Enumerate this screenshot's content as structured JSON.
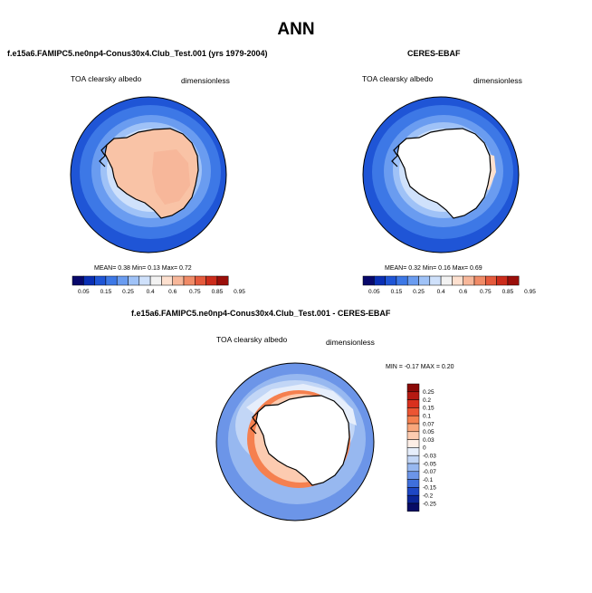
{
  "chart_data": [
    {
      "type": "heatmap",
      "panel": "top-left",
      "title": "f.e15a6.FAMIPC5.ne0np4-Conus30x4.Club_Test.001 (yrs 1979-2004)",
      "variable": "TOA clearsky albedo",
      "units": "dimensionless",
      "stats": {
        "mean": "0.38",
        "min": "0.13",
        "max": "0.72"
      },
      "colorbar": {
        "levels": [
          "0.05",
          "0.15",
          "0.25",
          "0.4",
          "0.6",
          "0.75",
          "0.85",
          "0.95"
        ],
        "colors": [
          "#08086b",
          "#0a2fb4",
          "#1f55d6",
          "#3d78e6",
          "#6a9cf0",
          "#9fc2f7",
          "#cfe1fb",
          "#f2f2f2",
          "#fde0cf",
          "#f7b79a",
          "#f08b67",
          "#e55a3c",
          "#cc2c1b",
          "#9b0f0a"
        ]
      }
    },
    {
      "type": "heatmap",
      "panel": "top-right",
      "title": "CERES-EBAF",
      "variable": "TOA clearsky albedo",
      "units": "dimensionless",
      "stats": {
        "mean": "0.32",
        "min": "0.16",
        "max": "0.69"
      },
      "colorbar": {
        "levels": [
          "0.05",
          "0.15",
          "0.25",
          "0.4",
          "0.6",
          "0.75",
          "0.85",
          "0.95"
        ],
        "colors": [
          "#08086b",
          "#0a2fb4",
          "#1f55d6",
          "#3d78e6",
          "#6a9cf0",
          "#9fc2f7",
          "#cfe1fb",
          "#f2f2f2",
          "#fde0cf",
          "#f7b79a",
          "#f08b67",
          "#e55a3c",
          "#cc2c1b",
          "#9b0f0a"
        ]
      }
    },
    {
      "type": "heatmap",
      "panel": "bottom",
      "title": "f.e15a6.FAMIPC5.ne0np4-Conus30x4.Club_Test.001 - CERES-EBAF",
      "variable": "TOA clearsky albedo",
      "units": "dimensionless",
      "stats": {
        "min": "-0.17",
        "max": "0.20"
      },
      "colorbar": {
        "levels": [
          "0.25",
          "0.2",
          "0.15",
          "0.1",
          "0.07",
          "0.05",
          "0.03",
          "0",
          "-0.03",
          "-0.05",
          "-0.07",
          "-0.1",
          "-0.15",
          "-0.2",
          "-0.25"
        ],
        "colors": [
          "#8a0a08",
          "#b51a12",
          "#d9301e",
          "#ec5533",
          "#f5804f",
          "#f9a77c",
          "#fccbb0",
          "#fdeee6",
          "#e6eefb",
          "#c2d6f6",
          "#97b8f0",
          "#6c95e8",
          "#3f6fdc",
          "#1e47c4",
          "#0b2597",
          "#070b66"
        ]
      }
    }
  ],
  "labels": {
    "main_title": "ANN",
    "mean_label": "MEAN=",
    "min_label": "Min=",
    "max_label": "Max=",
    "diff_min_label": "MIN =",
    "diff_max_label": "MAX ="
  },
  "colors": {
    "ocean_dark": "#1f55d6",
    "ocean_mid": "#3d78e6",
    "ocean_light": "#6a9cf0",
    "ocean_pale": "#9fc2f7",
    "land_model": "#f9c3a6",
    "land_obs": "#ffffff"
  }
}
